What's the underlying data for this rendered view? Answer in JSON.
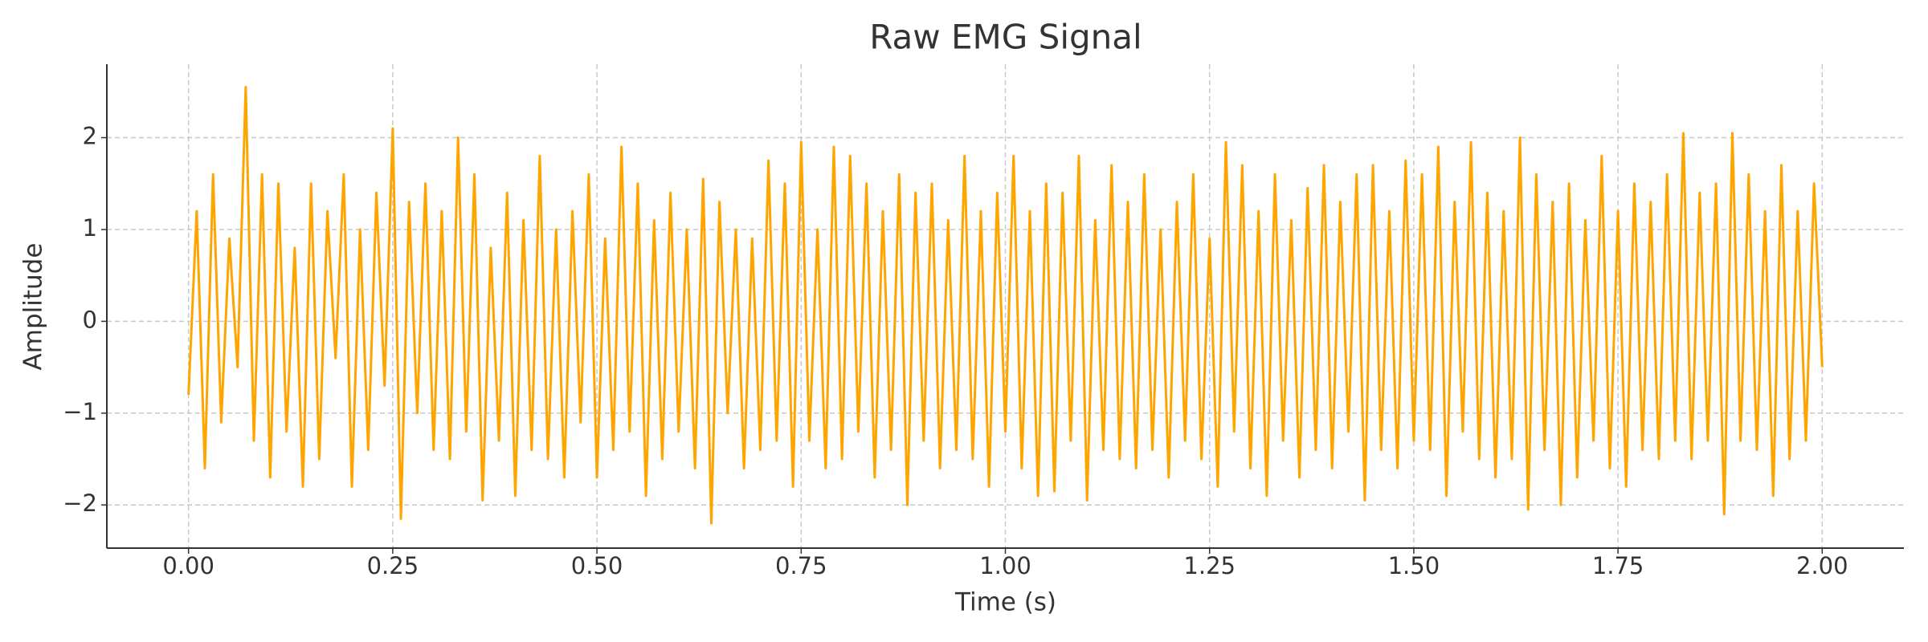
{
  "chart_data": {
    "type": "line",
    "title": "Raw EMG Signal",
    "xlabel": "Time (s)",
    "ylabel": "Amplitude",
    "color": "#ffa500",
    "grid": true,
    "xlim": [
      -0.1,
      2.1
    ],
    "ylim": [
      -2.47,
      2.8
    ],
    "xticks": [
      {
        "value": 0,
        "label": "0.00"
      },
      {
        "value": 0.25,
        "label": "0.25"
      },
      {
        "value": 0.5,
        "label": "0.50"
      },
      {
        "value": 0.75,
        "label": "0.75"
      },
      {
        "value": 1,
        "label": "1.00"
      },
      {
        "value": 1.25,
        "label": "1.25"
      },
      {
        "value": 1.5,
        "label": "1.50"
      },
      {
        "value": 1.75,
        "label": "1.75"
      },
      {
        "value": 2,
        "label": "2.00"
      }
    ],
    "yticks": [
      {
        "value": -2,
        "label": "−2"
      },
      {
        "value": -1,
        "label": "−1"
      },
      0,
      1,
      2
    ],
    "x": [
      0.0,
      0.01,
      0.02,
      0.03,
      0.04,
      0.05,
      0.06,
      0.07,
      0.08,
      0.09,
      0.1,
      0.11,
      0.12,
      0.13,
      0.14,
      0.15,
      0.16,
      0.17,
      0.18,
      0.19,
      0.2,
      0.21,
      0.22,
      0.23,
      0.24,
      0.25,
      0.26,
      0.27,
      0.28,
      0.29,
      0.3,
      0.31,
      0.32,
      0.33,
      0.34,
      0.35,
      0.36,
      0.37,
      0.38,
      0.39,
      0.4,
      0.41,
      0.42,
      0.43,
      0.44,
      0.45,
      0.46,
      0.47,
      0.48,
      0.49,
      0.5,
      0.51,
      0.52,
      0.53,
      0.54,
      0.55,
      0.56,
      0.57,
      0.58,
      0.59,
      0.6,
      0.61,
      0.62,
      0.63,
      0.64,
      0.65,
      0.66,
      0.67,
      0.68,
      0.69,
      0.7,
      0.71,
      0.72,
      0.73,
      0.74,
      0.75,
      0.76,
      0.77,
      0.78,
      0.79,
      0.8,
      0.81,
      0.82,
      0.83,
      0.84,
      0.85,
      0.86,
      0.87,
      0.88,
      0.89,
      0.9,
      0.91,
      0.92,
      0.93,
      0.94,
      0.95,
      0.96,
      0.97,
      0.98,
      0.99,
      1.0,
      1.01,
      1.02,
      1.03,
      1.04,
      1.05,
      1.06,
      1.07,
      1.08,
      1.09,
      1.1,
      1.11,
      1.12,
      1.13,
      1.14,
      1.15,
      1.16,
      1.17,
      1.18,
      1.19,
      1.2,
      1.21,
      1.22,
      1.23,
      1.24,
      1.25,
      1.26,
      1.27,
      1.28,
      1.29,
      1.3,
      1.31,
      1.32,
      1.33,
      1.34,
      1.35,
      1.36,
      1.37,
      1.38,
      1.39,
      1.4,
      1.41,
      1.42,
      1.43,
      1.44,
      1.45,
      1.46,
      1.47,
      1.48,
      1.49,
      1.5,
      1.51,
      1.52,
      1.53,
      1.54,
      1.55,
      1.56,
      1.57,
      1.58,
      1.59,
      1.6,
      1.61,
      1.62,
      1.63,
      1.64,
      1.65,
      1.66,
      1.67,
      1.68,
      1.69,
      1.7,
      1.71,
      1.72,
      1.73,
      1.74,
      1.75,
      1.76,
      1.77,
      1.78,
      1.79,
      1.8,
      1.81,
      1.82,
      1.83,
      1.84,
      1.85,
      1.86,
      1.87,
      1.88,
      1.89,
      1.9,
      1.91,
      1.92,
      1.93,
      1.94,
      1.95,
      1.96,
      1.97,
      1.98,
      1.99,
      2.0
    ],
    "values": [
      -0.8,
      1.2,
      -1.6,
      1.6,
      -1.1,
      0.9,
      -0.5,
      2.55,
      -1.3,
      1.6,
      -1.7,
      1.5,
      -1.2,
      0.8,
      -1.8,
      1.5,
      -1.5,
      1.2,
      -0.4,
      1.6,
      -1.8,
      1.0,
      -1.4,
      1.4,
      -0.7,
      2.1,
      -2.15,
      1.3,
      -1.0,
      1.5,
      -1.4,
      1.2,
      -1.5,
      2.0,
      -1.2,
      1.6,
      -1.95,
      0.8,
      -1.3,
      1.4,
      -1.9,
      1.1,
      -1.4,
      1.8,
      -1.5,
      1.0,
      -1.7,
      1.2,
      -1.1,
      1.6,
      -1.7,
      0.9,
      -1.4,
      1.9,
      -1.2,
      1.5,
      -1.9,
      1.1,
      -1.5,
      1.4,
      -1.2,
      1.0,
      -1.6,
      1.55,
      -2.2,
      1.3,
      -1.0,
      1.0,
      -1.6,
      0.9,
      -1.4,
      1.75,
      -1.3,
      1.5,
      -1.8,
      1.95,
      -1.3,
      1.0,
      -1.6,
      1.9,
      -1.5,
      1.8,
      -1.2,
      1.5,
      -1.7,
      1.2,
      -1.4,
      1.6,
      -2.0,
      1.4,
      -1.3,
      1.5,
      -1.6,
      1.1,
      -1.4,
      1.8,
      -1.5,
      1.2,
      -1.8,
      1.4,
      -1.2,
      1.8,
      -1.6,
      1.2,
      -1.9,
      1.5,
      -1.85,
      1.4,
      -1.3,
      1.8,
      -1.95,
      1.1,
      -1.4,
      1.7,
      -1.5,
      1.3,
      -1.6,
      1.6,
      -1.4,
      1.0,
      -1.7,
      1.3,
      -1.3,
      1.6,
      -1.5,
      0.9,
      -1.8,
      1.95,
      -1.2,
      1.7,
      -1.6,
      1.2,
      -1.9,
      1.6,
      -1.3,
      1.1,
      -1.7,
      1.45,
      -1.4,
      1.7,
      -1.6,
      1.3,
      -1.2,
      1.6,
      -1.95,
      1.7,
      -1.4,
      1.2,
      -1.6,
      1.75,
      -1.3,
      1.6,
      -1.4,
      1.9,
      -1.9,
      1.3,
      -1.2,
      1.95,
      -1.5,
      1.4,
      -1.7,
      1.2,
      -1.5,
      2.0,
      -2.05,
      1.6,
      -1.4,
      1.3,
      -2.0,
      1.5,
      -1.7,
      1.1,
      -1.3,
      1.8,
      -1.6,
      1.2,
      -1.8,
      1.5,
      -1.4,
      1.3,
      -1.5,
      1.6,
      -1.3,
      2.05,
      -1.5,
      1.4,
      -1.3,
      1.5,
      -2.1,
      2.05,
      -1.3,
      1.6,
      -1.4,
      1.2,
      -1.9,
      1.7,
      -1.5,
      1.2,
      -1.3,
      1.5,
      -0.5
    ]
  }
}
